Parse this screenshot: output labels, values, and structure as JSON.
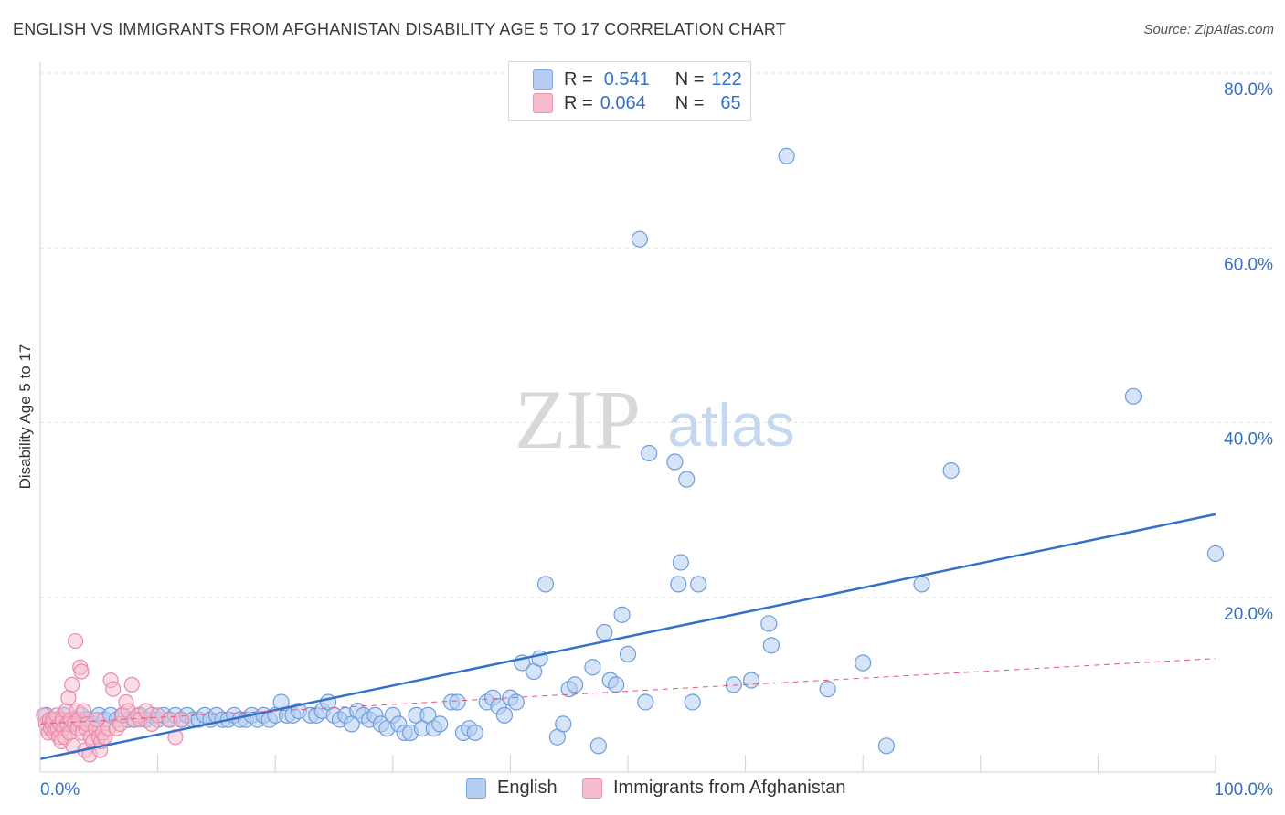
{
  "title": "ENGLISH VS IMMIGRANTS FROM AFGHANISTAN DISABILITY AGE 5 TO 17 CORRELATION CHART",
  "source": "Source: ZipAtlas.com",
  "watermark": {
    "zip": "ZIP",
    "atlas": "atlas"
  },
  "legend": {
    "rows": [
      {
        "r_label": "R =",
        "r_value": "0.541",
        "n_label": "N =",
        "n_value": "122",
        "color": "#b5cdf2"
      },
      {
        "r_label": "R =",
        "r_value": "0.064",
        "n_label": "N =",
        "n_value": "65",
        "color": "#f6bccd"
      }
    ]
  },
  "bottom_legend": {
    "english": "English",
    "afghanistan": "Immigrants from Afghanistan"
  },
  "chart_data": {
    "type": "scatter",
    "title": "ENGLISH VS IMMIGRANTS FROM AFGHANISTAN DISABILITY AGE 5 TO 17 CORRELATION CHART",
    "xlabel": "",
    "ylabel": "Disability Age 5 to 17",
    "xlim": [
      0,
      100
    ],
    "ylim": [
      0,
      80
    ],
    "x_tick_labels": [
      "0.0%",
      "100.0%"
    ],
    "y_ticks": [
      20,
      40,
      60,
      80
    ],
    "y_tick_labels": [
      "20.0%",
      "40.0%",
      "60.0%",
      "80.0%"
    ],
    "colors": {
      "english": "#3370c9",
      "english_fill": "#b5cdf2",
      "afghanistan": "#e8547f",
      "afghanistan_fill": "#f6bccd",
      "tick_text": "#3370c9"
    },
    "series": [
      {
        "name": "English",
        "trend": {
          "x": [
            0,
            100
          ],
          "y": [
            1.5,
            29.5
          ]
        },
        "points": [
          [
            0.5,
            6.5
          ],
          [
            1,
            6
          ],
          [
            1.5,
            6
          ],
          [
            2,
            6.5
          ],
          [
            2.5,
            5.5
          ],
          [
            3,
            6
          ],
          [
            3.5,
            6.5
          ],
          [
            4,
            6
          ],
          [
            4.5,
            5.5
          ],
          [
            5,
            6.5
          ],
          [
            5.5,
            6
          ],
          [
            6,
            6.5
          ],
          [
            6.5,
            6
          ],
          [
            7,
            6.5
          ],
          [
            7.5,
            6
          ],
          [
            8,
            6
          ],
          [
            8.5,
            6.5
          ],
          [
            9,
            6
          ],
          [
            9.5,
            6.5
          ],
          [
            10,
            6
          ],
          [
            10.5,
            6.5
          ],
          [
            11,
            6
          ],
          [
            11.5,
            6.5
          ],
          [
            12,
            6
          ],
          [
            12.5,
            6.5
          ],
          [
            13,
            6
          ],
          [
            13.5,
            6
          ],
          [
            14,
            6.5
          ],
          [
            14.5,
            6
          ],
          [
            15,
            6.5
          ],
          [
            15.5,
            6
          ],
          [
            16,
            6
          ],
          [
            16.5,
            6.5
          ],
          [
            17,
            6
          ],
          [
            17.5,
            6
          ],
          [
            18,
            6.5
          ],
          [
            18.5,
            6
          ],
          [
            19,
            6.5
          ],
          [
            19.5,
            6
          ],
          [
            20,
            6.5
          ],
          [
            20.5,
            8
          ],
          [
            21,
            6.5
          ],
          [
            21.5,
            6.5
          ],
          [
            22,
            7
          ],
          [
            23,
            6.5
          ],
          [
            23.5,
            6.5
          ],
          [
            24,
            7
          ],
          [
            24.5,
            8
          ],
          [
            25,
            6.5
          ],
          [
            25.5,
            6
          ],
          [
            26,
            6.5
          ],
          [
            26.5,
            5.5
          ],
          [
            27,
            7
          ],
          [
            27.5,
            6.5
          ],
          [
            28,
            6
          ],
          [
            28.5,
            6.5
          ],
          [
            29,
            5.5
          ],
          [
            29.5,
            5
          ],
          [
            30,
            6.5
          ],
          [
            30.5,
            5.5
          ],
          [
            31,
            4.5
          ],
          [
            31.5,
            4.5
          ],
          [
            32,
            6.5
          ],
          [
            32.5,
            5
          ],
          [
            33,
            6.5
          ],
          [
            33.5,
            5
          ],
          [
            34,
            5.5
          ],
          [
            35,
            8
          ],
          [
            35.5,
            8
          ],
          [
            36,
            4.5
          ],
          [
            36.5,
            5
          ],
          [
            37,
            4.5
          ],
          [
            38,
            8
          ],
          [
            38.5,
            8.5
          ],
          [
            39,
            7.5
          ],
          [
            39.5,
            6.5
          ],
          [
            40,
            8.5
          ],
          [
            40.5,
            8
          ],
          [
            41,
            12.5
          ],
          [
            42,
            11.5
          ],
          [
            42.5,
            13
          ],
          [
            43,
            21.5
          ],
          [
            44,
            4
          ],
          [
            44.5,
            5.5
          ],
          [
            45,
            9.5
          ],
          [
            45.5,
            10
          ],
          [
            47,
            12
          ],
          [
            47.5,
            3
          ],
          [
            48,
            16
          ],
          [
            48.5,
            10.5
          ],
          [
            49,
            10
          ],
          [
            49.5,
            18
          ],
          [
            50,
            13.5
          ],
          [
            51,
            61
          ],
          [
            51.5,
            8
          ],
          [
            51.8,
            36.5
          ],
          [
            54,
            35.5
          ],
          [
            54.3,
            21.5
          ],
          [
            54.5,
            24
          ],
          [
            55,
            33.5
          ],
          [
            55.5,
            8
          ],
          [
            56,
            21.5
          ],
          [
            59,
            10
          ],
          [
            60.5,
            10.5
          ],
          [
            62,
            17
          ],
          [
            62.2,
            14.5
          ],
          [
            63.5,
            70.5
          ],
          [
            67,
            9.5
          ],
          [
            70,
            12.5
          ],
          [
            72,
            3
          ],
          [
            75,
            21.5
          ],
          [
            77.5,
            34.5
          ],
          [
            93,
            43
          ],
          [
            100,
            25
          ]
        ]
      },
      {
        "name": "Immigrants from Afghanistan",
        "trend": {
          "x": [
            0,
            100
          ],
          "y": [
            5.5,
            13
          ]
        },
        "points": [
          [
            0.3,
            6.5
          ],
          [
            0.5,
            5.5
          ],
          [
            0.6,
            5
          ],
          [
            0.7,
            4.5
          ],
          [
            0.8,
            6
          ],
          [
            0.9,
            5
          ],
          [
            1,
            5.5
          ],
          [
            1.1,
            6
          ],
          [
            1.2,
            4.5
          ],
          [
            1.3,
            5
          ],
          [
            1.4,
            6.5
          ],
          [
            1.5,
            5
          ],
          [
            1.6,
            4
          ],
          [
            1.7,
            5.5
          ],
          [
            1.8,
            3.5
          ],
          [
            1.9,
            6
          ],
          [
            2,
            5
          ],
          [
            2.1,
            4
          ],
          [
            2.2,
            7
          ],
          [
            2.3,
            5.5
          ],
          [
            2.4,
            8.5
          ],
          [
            2.5,
            4.5
          ],
          [
            2.6,
            6
          ],
          [
            2.7,
            10
          ],
          [
            2.8,
            3
          ],
          [
            2.9,
            5.5
          ],
          [
            3,
            15
          ],
          [
            3.1,
            7
          ],
          [
            3.2,
            5
          ],
          [
            3.3,
            6
          ],
          [
            3.4,
            12
          ],
          [
            3.5,
            11.5
          ],
          [
            3.6,
            4.5
          ],
          [
            3.7,
            7
          ],
          [
            3.8,
            2.5
          ],
          [
            3.9,
            5
          ],
          [
            4,
            5.5
          ],
          [
            4.2,
            2
          ],
          [
            4.3,
            4
          ],
          [
            4.5,
            3.5
          ],
          [
            4.7,
            5
          ],
          [
            4.8,
            6
          ],
          [
            5,
            4
          ],
          [
            5.1,
            2.5
          ],
          [
            5.2,
            3.5
          ],
          [
            5.3,
            4.5
          ],
          [
            5.5,
            4
          ],
          [
            5.8,
            5
          ],
          [
            6,
            10.5
          ],
          [
            6.2,
            9.5
          ],
          [
            6.5,
            5
          ],
          [
            6.8,
            5.5
          ],
          [
            7,
            6.5
          ],
          [
            7.3,
            8
          ],
          [
            7.5,
            7
          ],
          [
            7.8,
            10
          ],
          [
            8,
            6
          ],
          [
            8.3,
            6.5
          ],
          [
            8.5,
            6
          ],
          [
            9,
            7
          ],
          [
            9.5,
            5.5
          ],
          [
            10,
            6.5
          ],
          [
            11,
            6
          ],
          [
            11.5,
            4
          ],
          [
            12,
            6
          ]
        ]
      }
    ]
  }
}
